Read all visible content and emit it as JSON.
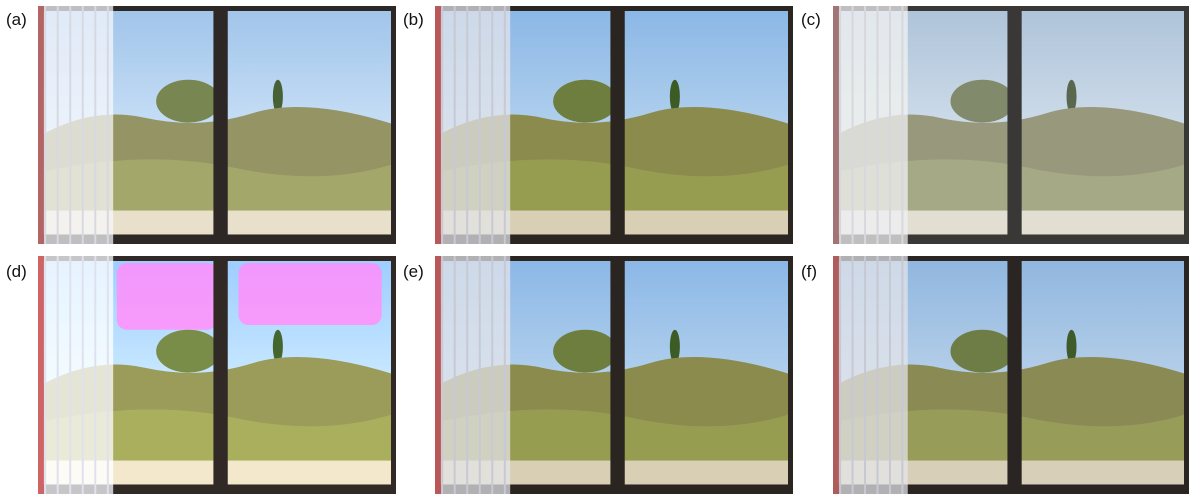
{
  "figure": {
    "panels": [
      {
        "label": "(a)",
        "variant": "bright-hazy"
      },
      {
        "label": "(b)",
        "variant": "vivid"
      },
      {
        "label": "(c)",
        "variant": "washed-out"
      },
      {
        "label": "(d)",
        "variant": "overexposed-magenta-sky"
      },
      {
        "label": "(e)",
        "variant": "vivid"
      },
      {
        "label": "(f)",
        "variant": "balanced"
      }
    ],
    "scene": "window-view-of-pine-trees-and-shrubs",
    "colors": {
      "frame": "#2a2522",
      "sky": "#a9c9e8",
      "foliage": "#8a8a55",
      "ground": "#d8cfb8",
      "curtain": "#e6e6ea",
      "curtain_edge": "#b04646",
      "magenta_patch": "#e879d8"
    }
  }
}
